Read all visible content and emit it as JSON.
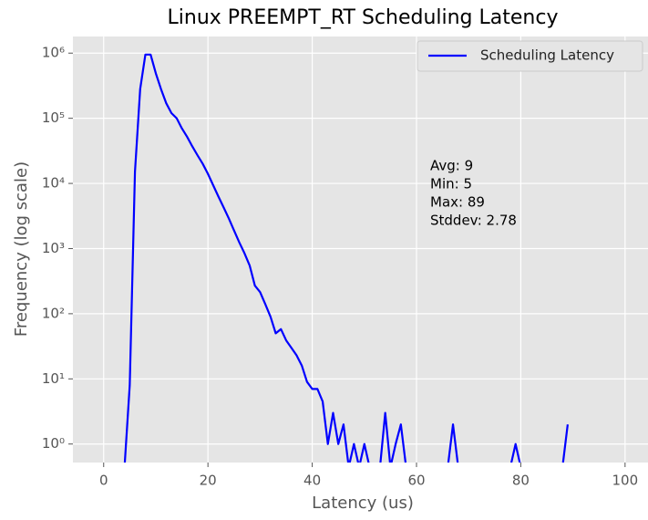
{
  "chart_data": {
    "type": "line",
    "title": "Linux PREEMPT_RT Scheduling Latency",
    "xlabel": "Latency (us)",
    "ylabel": "Frequency (log scale)",
    "x": [
      4,
      5,
      6,
      7,
      8,
      9,
      10,
      11,
      12,
      13,
      14,
      15,
      16,
      17,
      18,
      19,
      20,
      21,
      22,
      23,
      24,
      25,
      26,
      27,
      28,
      29,
      30,
      31,
      32,
      33,
      34,
      35,
      36,
      37,
      38,
      39,
      40,
      41,
      42,
      43,
      44,
      45,
      46,
      47,
      48,
      49,
      50,
      51,
      52,
      53,
      54,
      55,
      56,
      57,
      58,
      59,
      60,
      61,
      62,
      63,
      64,
      65,
      66,
      67,
      68,
      69,
      70,
      71,
      72,
      73,
      74,
      75,
      76,
      77,
      78,
      79,
      80,
      81,
      82,
      83,
      84,
      85,
      86,
      87,
      88,
      89
    ],
    "series": [
      {
        "name": "Scheduling Latency",
        "color": "#0000ff",
        "values": [
          0,
          8,
          15000,
          280000,
          950000,
          950000,
          490000,
          280000,
          170000,
          120000,
          100000,
          70000,
          52000,
          37000,
          27000,
          20000,
          14000,
          9400,
          6300,
          4300,
          2900,
          1900,
          1250,
          850,
          550,
          270,
          215,
          140,
          90,
          50,
          58,
          39,
          30,
          23,
          16,
          9,
          7,
          7,
          4.5,
          1,
          3,
          1,
          2,
          0,
          1,
          0,
          1,
          0,
          0,
          0,
          3,
          0,
          1,
          2,
          0,
          0,
          0,
          0,
          0,
          0,
          0,
          0,
          0,
          2,
          0,
          0,
          0,
          0,
          0,
          0,
          0,
          0,
          0,
          0,
          0,
          1,
          0,
          0,
          0,
          0,
          0,
          0,
          0,
          0,
          0,
          2
        ]
      }
    ],
    "xlim": [
      -5.9,
      104.4
    ],
    "xticks": [
      0,
      20,
      40,
      60,
      80,
      100
    ],
    "ylim": [
      0.52,
      1800000
    ],
    "log_y": true,
    "yticks": [
      {
        "value": 1,
        "label": "10⁰"
      },
      {
        "value": 10,
        "label": "10¹"
      },
      {
        "value": 100,
        "label": "10²"
      },
      {
        "value": 1000,
        "label": "10³"
      },
      {
        "value": 10000,
        "label": "10⁴"
      },
      {
        "value": 100000,
        "label": "10⁵"
      },
      {
        "value": 1000000,
        "label": "10⁶"
      }
    ],
    "grid": true,
    "legend": "upper right",
    "annotation": [
      "Avg: 9",
      "Min: 5",
      "Max: 89",
      "Stddev: 2.78"
    ]
  }
}
